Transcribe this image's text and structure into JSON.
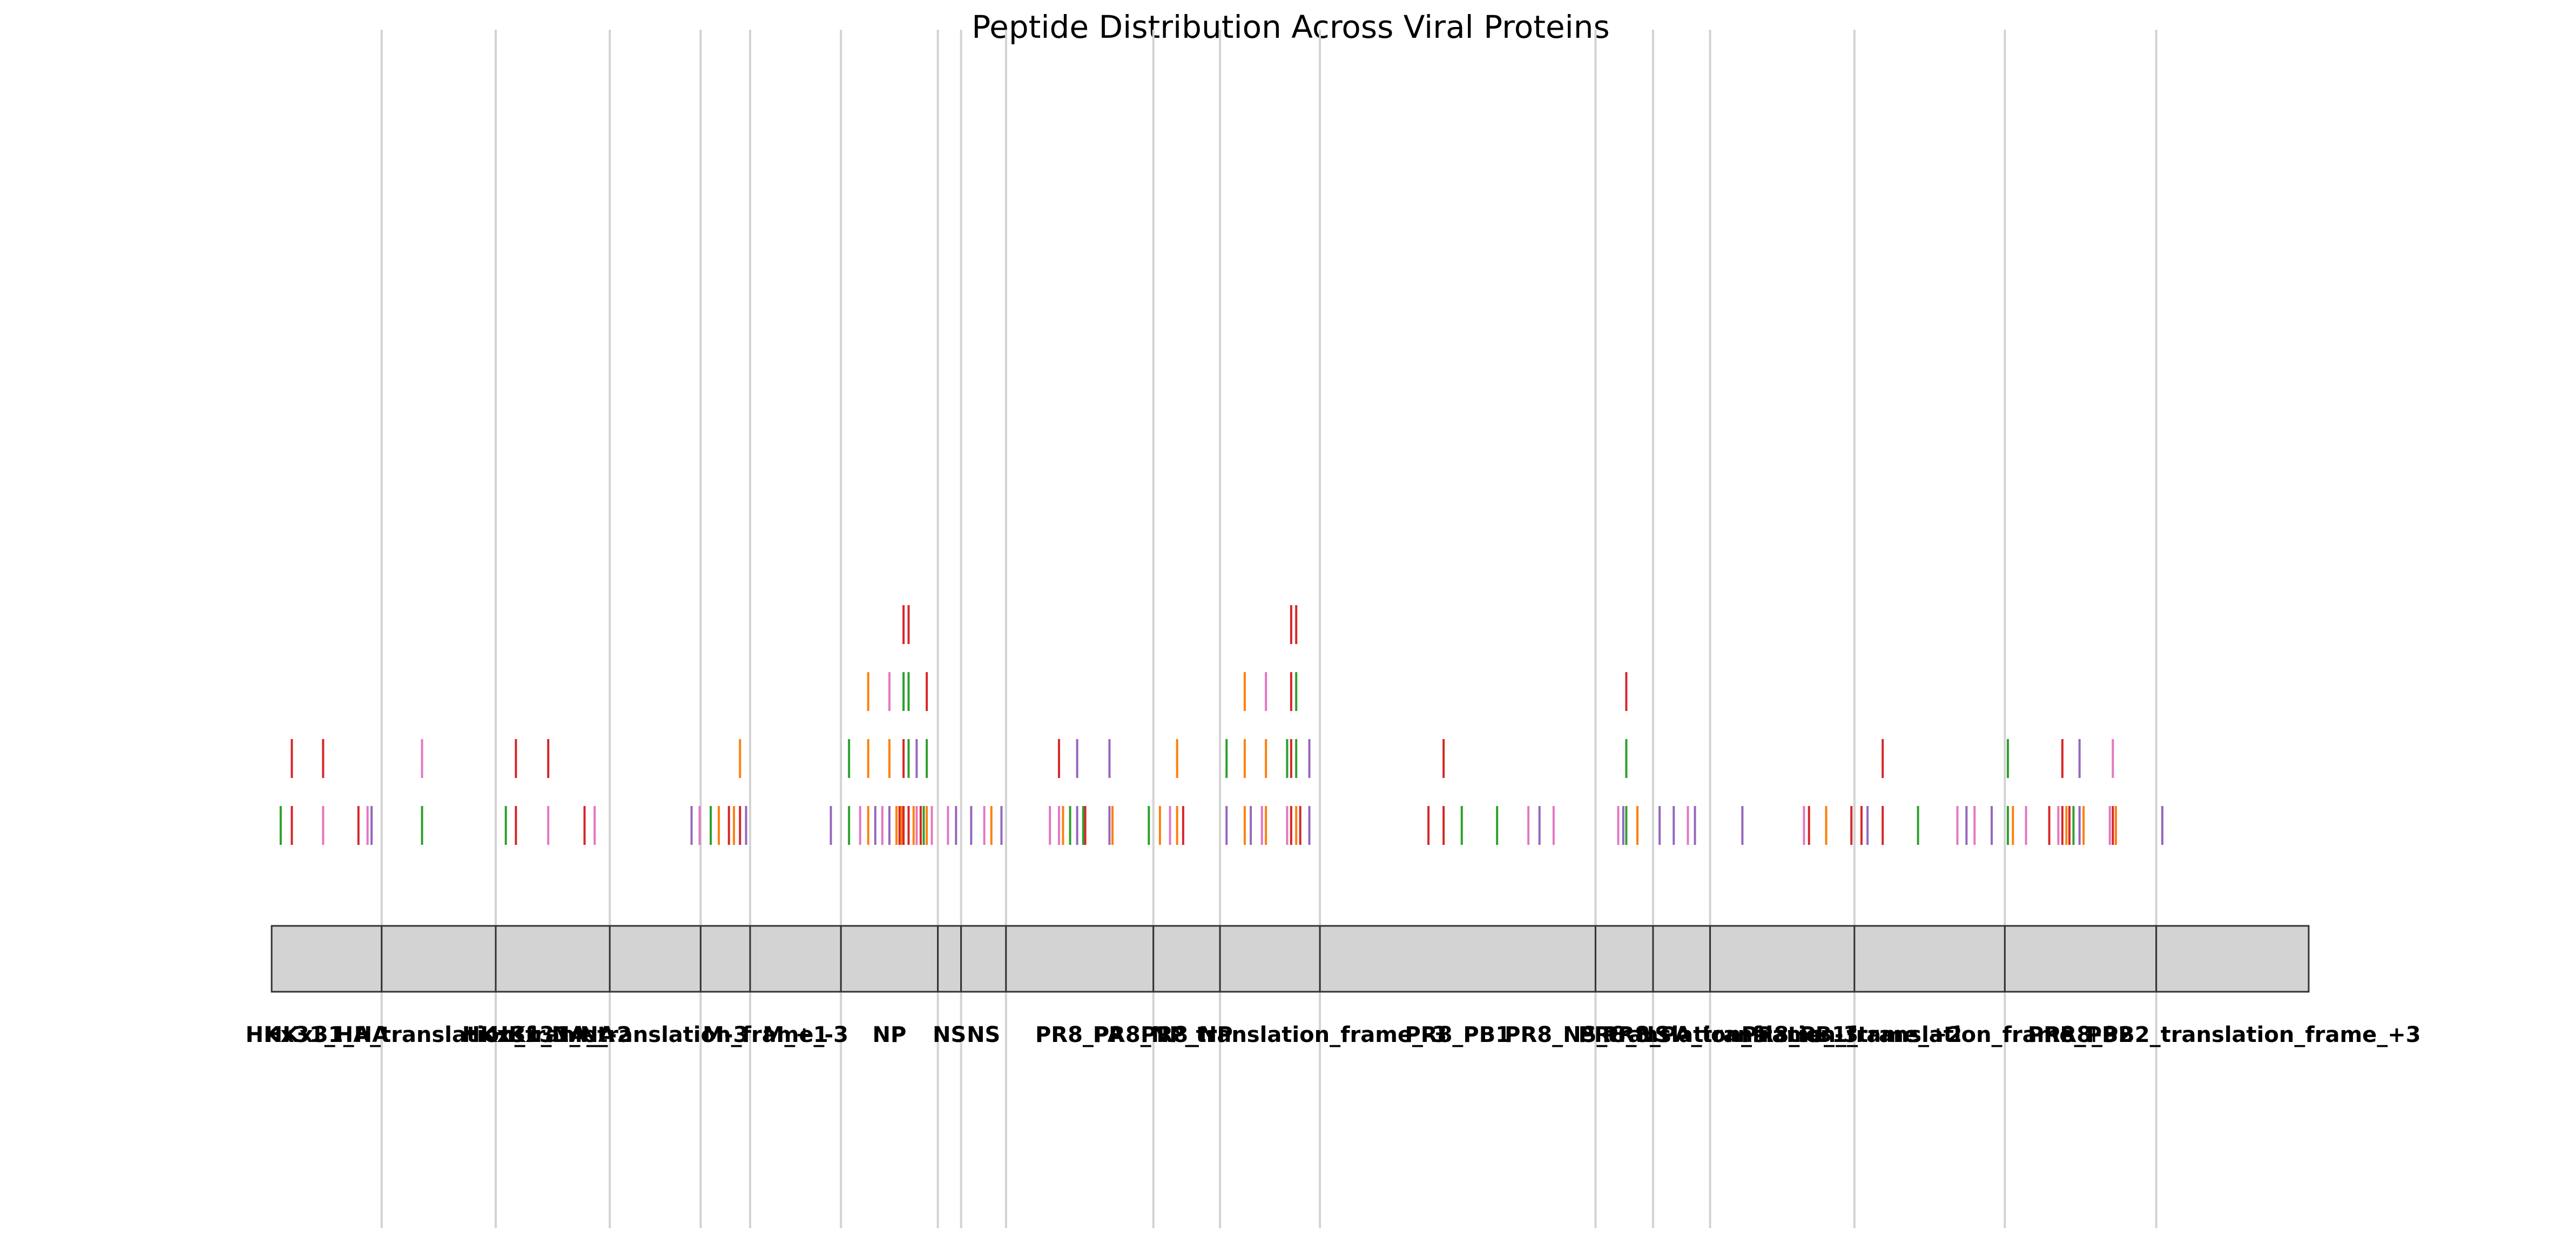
{
  "chart_data": {
    "type": "track",
    "title": "Peptide Distribution Across Viral Proteins",
    "xlabel": "",
    "ylabel": "",
    "axes_visible": false,
    "grid": false,
    "colors": {
      "box_fill": "#d3d3d3",
      "box_edge": "#333333",
      "divider": "#d3d3d3",
      "palette": [
        "#2ca02c",
        "#d62728",
        "#e377c2",
        "#9467bd",
        "#ff7f0e"
      ]
    },
    "proteins": [
      {
        "name": "HKx31_HA",
        "start": 0,
        "end": 218
      },
      {
        "name": "HKx31_HA_translation_frame_-2",
        "start": 218,
        "end": 444
      },
      {
        "name": "HKx31_NA",
        "start": 444,
        "end": 670
      },
      {
        "name": "HKx31_NA_translation_frame_-3",
        "start": 670,
        "end": 850
      },
      {
        "name": "M-3",
        "start": 850,
        "end": 948
      },
      {
        "name": "M_+1",
        "start": 948,
        "end": 1128
      },
      {
        "name": "NP",
        "start": 1128,
        "end": 1320
      },
      {
        "name": "NS",
        "start": 1320,
        "end": 1366
      },
      {
        "name": "NS",
        "start": 1366,
        "end": 1455
      },
      {
        "name": "PR8_PA",
        "start": 1455,
        "end": 1747
      },
      {
        "name": "PR8_NP",
        "start": 1747,
        "end": 1879
      },
      {
        "name": "PR8_NP_translation_frame_-3",
        "start": 1879,
        "end": 2077
      },
      {
        "name": "PR8_PB1",
        "start": 2077,
        "end": 2623
      },
      {
        "name": "PR8_NS",
        "start": 2623,
        "end": 2737
      },
      {
        "name": "PR8_NS_translation_frame_-3",
        "start": 2737,
        "end": 2850
      },
      {
        "name": "PR8_PA_translation_frame_+2",
        "start": 2850,
        "end": 3136
      },
      {
        "name": "PR8_PB1_translation_frame_+3",
        "start": 3136,
        "end": 3434
      },
      {
        "name": "PR8_PB2",
        "start": 3434,
        "end": 3734
      },
      {
        "name": "PR8_PB2_translation_frame_+3",
        "start": 3734,
        "end": 4036
      }
    ],
    "peptides": [
      {
        "pos": 18,
        "row": 0,
        "color": 0
      },
      {
        "pos": 40,
        "row": 0,
        "color": 1
      },
      {
        "pos": 40,
        "row": 1,
        "color": 1
      },
      {
        "pos": 102,
        "row": 0,
        "color": 2
      },
      {
        "pos": 102,
        "row": 1,
        "color": 1
      },
      {
        "pos": 172,
        "row": 0,
        "color": 1
      },
      {
        "pos": 190,
        "row": 0,
        "color": 2
      },
      {
        "pos": 198,
        "row": 0,
        "color": 3
      },
      {
        "pos": 298,
        "row": 0,
        "color": 0
      },
      {
        "pos": 298,
        "row": 1,
        "color": 2
      },
      {
        "pos": 464,
        "row": 0,
        "color": 0
      },
      {
        "pos": 484,
        "row": 0,
        "color": 1
      },
      {
        "pos": 484,
        "row": 1,
        "color": 1
      },
      {
        "pos": 548,
        "row": 0,
        "color": 2
      },
      {
        "pos": 548,
        "row": 1,
        "color": 1
      },
      {
        "pos": 620,
        "row": 0,
        "color": 1
      },
      {
        "pos": 640,
        "row": 0,
        "color": 2
      },
      {
        "pos": 832,
        "row": 0,
        "color": 3
      },
      {
        "pos": 848,
        "row": 0,
        "color": 2
      },
      {
        "pos": 870,
        "row": 0,
        "color": 0
      },
      {
        "pos": 886,
        "row": 0,
        "color": 4
      },
      {
        "pos": 906,
        "row": 0,
        "color": 1
      },
      {
        "pos": 916,
        "row": 0,
        "color": 4
      },
      {
        "pos": 928,
        "row": 0,
        "color": 1
      },
      {
        "pos": 928,
        "row": 1,
        "color": 4
      },
      {
        "pos": 940,
        "row": 0,
        "color": 3
      },
      {
        "pos": 1108,
        "row": 0,
        "color": 3
      },
      {
        "pos": 1144,
        "row": 0,
        "color": 0
      },
      {
        "pos": 1144,
        "row": 1,
        "color": 0
      },
      {
        "pos": 1166,
        "row": 0,
        "color": 2
      },
      {
        "pos": 1182,
        "row": 0,
        "color": 4
      },
      {
        "pos": 1182,
        "row": 1,
        "color": 4
      },
      {
        "pos": 1182,
        "row": 2,
        "color": 4
      },
      {
        "pos": 1196,
        "row": 0,
        "color": 3
      },
      {
        "pos": 1210,
        "row": 0,
        "color": 2
      },
      {
        "pos": 1224,
        "row": 0,
        "color": 3
      },
      {
        "pos": 1224,
        "row": 1,
        "color": 4
      },
      {
        "pos": 1224,
        "row": 2,
        "color": 2
      },
      {
        "pos": 1238,
        "row": 0,
        "color": 4
      },
      {
        "pos": 1244,
        "row": 0,
        "color": 1
      },
      {
        "pos": 1248,
        "row": 0,
        "color": 4
      },
      {
        "pos": 1252,
        "row": 0,
        "color": 1
      },
      {
        "pos": 1252,
        "row": 1,
        "color": 1
      },
      {
        "pos": 1252,
        "row": 2,
        "color": 0
      },
      {
        "pos": 1252,
        "row": 3,
        "color": 1
      },
      {
        "pos": 1262,
        "row": 0,
        "color": 1
      },
      {
        "pos": 1262,
        "row": 1,
        "color": 0
      },
      {
        "pos": 1262,
        "row": 2,
        "color": 0
      },
      {
        "pos": 1262,
        "row": 3,
        "color": 1
      },
      {
        "pos": 1272,
        "row": 0,
        "color": 4
      },
      {
        "pos": 1278,
        "row": 0,
        "color": 2
      },
      {
        "pos": 1278,
        "row": 1,
        "color": 3
      },
      {
        "pos": 1286,
        "row": 0,
        "color": 1
      },
      {
        "pos": 1292,
        "row": 0,
        "color": 0
      },
      {
        "pos": 1298,
        "row": 0,
        "color": 4
      },
      {
        "pos": 1298,
        "row": 1,
        "color": 0
      },
      {
        "pos": 1298,
        "row": 2,
        "color": 1
      },
      {
        "pos": 1308,
        "row": 0,
        "color": 2
      },
      {
        "pos": 1340,
        "row": 0,
        "color": 2
      },
      {
        "pos": 1356,
        "row": 0,
        "color": 3
      },
      {
        "pos": 1386,
        "row": 0,
        "color": 3
      },
      {
        "pos": 1412,
        "row": 0,
        "color": 2
      },
      {
        "pos": 1426,
        "row": 0,
        "color": 4
      },
      {
        "pos": 1446,
        "row": 0,
        "color": 3
      },
      {
        "pos": 1542,
        "row": 0,
        "color": 2
      },
      {
        "pos": 1560,
        "row": 0,
        "color": 2
      },
      {
        "pos": 1560,
        "row": 1,
        "color": 1
      },
      {
        "pos": 1568,
        "row": 0,
        "color": 4
      },
      {
        "pos": 1582,
        "row": 0,
        "color": 0
      },
      {
        "pos": 1596,
        "row": 0,
        "color": 3
      },
      {
        "pos": 1596,
        "row": 1,
        "color": 3
      },
      {
        "pos": 1608,
        "row": 0,
        "color": 0
      },
      {
        "pos": 1612,
        "row": 0,
        "color": 1
      },
      {
        "pos": 1660,
        "row": 0,
        "color": 3
      },
      {
        "pos": 1660,
        "row": 1,
        "color": 3
      },
      {
        "pos": 1666,
        "row": 0,
        "color": 4
      },
      {
        "pos": 1738,
        "row": 0,
        "color": 0
      },
      {
        "pos": 1760,
        "row": 0,
        "color": 4
      },
      {
        "pos": 1780,
        "row": 0,
        "color": 2
      },
      {
        "pos": 1794,
        "row": 0,
        "color": 4
      },
      {
        "pos": 1794,
        "row": 1,
        "color": 4
      },
      {
        "pos": 1806,
        "row": 0,
        "color": 1
      },
      {
        "pos": 1892,
        "row": 0,
        "color": 3
      },
      {
        "pos": 1892,
        "row": 1,
        "color": 0
      },
      {
        "pos": 1928,
        "row": 0,
        "color": 4
      },
      {
        "pos": 1928,
        "row": 1,
        "color": 4
      },
      {
        "pos": 1928,
        "row": 2,
        "color": 4
      },
      {
        "pos": 1940,
        "row": 0,
        "color": 3
      },
      {
        "pos": 1962,
        "row": 0,
        "color": 2
      },
      {
        "pos": 1970,
        "row": 0,
        "color": 4
      },
      {
        "pos": 1970,
        "row": 1,
        "color": 4
      },
      {
        "pos": 1970,
        "row": 2,
        "color": 2
      },
      {
        "pos": 2012,
        "row": 0,
        "color": 2
      },
      {
        "pos": 2012,
        "row": 1,
        "color": 0
      },
      {
        "pos": 2020,
        "row": 0,
        "color": 1
      },
      {
        "pos": 2020,
        "row": 1,
        "color": 1
      },
      {
        "pos": 2020,
        "row": 2,
        "color": 1
      },
      {
        "pos": 2020,
        "row": 3,
        "color": 1
      },
      {
        "pos": 2030,
        "row": 0,
        "color": 4
      },
      {
        "pos": 2030,
        "row": 1,
        "color": 0
      },
      {
        "pos": 2030,
        "row": 2,
        "color": 0
      },
      {
        "pos": 2030,
        "row": 3,
        "color": 1
      },
      {
        "pos": 2038,
        "row": 0,
        "color": 1
      },
      {
        "pos": 2056,
        "row": 0,
        "color": 3
      },
      {
        "pos": 2056,
        "row": 1,
        "color": 3
      },
      {
        "pos": 2292,
        "row": 0,
        "color": 1
      },
      {
        "pos": 2322,
        "row": 0,
        "color": 1
      },
      {
        "pos": 2322,
        "row": 1,
        "color": 1
      },
      {
        "pos": 2358,
        "row": 0,
        "color": 0
      },
      {
        "pos": 2428,
        "row": 0,
        "color": 0
      },
      {
        "pos": 2490,
        "row": 0,
        "color": 2
      },
      {
        "pos": 2512,
        "row": 0,
        "color": 3
      },
      {
        "pos": 2540,
        "row": 0,
        "color": 2
      },
      {
        "pos": 2668,
        "row": 0,
        "color": 2
      },
      {
        "pos": 2678,
        "row": 0,
        "color": 3
      },
      {
        "pos": 2684,
        "row": 0,
        "color": 0
      },
      {
        "pos": 2684,
        "row": 1,
        "color": 0
      },
      {
        "pos": 2684,
        "row": 2,
        "color": 1
      },
      {
        "pos": 2706,
        "row": 0,
        "color": 4
      },
      {
        "pos": 2750,
        "row": 0,
        "color": 3
      },
      {
        "pos": 2778,
        "row": 0,
        "color": 3
      },
      {
        "pos": 2806,
        "row": 0,
        "color": 2
      },
      {
        "pos": 2820,
        "row": 0,
        "color": 3
      },
      {
        "pos": 2914,
        "row": 0,
        "color": 3
      },
      {
        "pos": 3036,
        "row": 0,
        "color": 2
      },
      {
        "pos": 3046,
        "row": 0,
        "color": 1
      },
      {
        "pos": 3080,
        "row": 0,
        "color": 4
      },
      {
        "pos": 3130,
        "row": 0,
        "color": 1
      },
      {
        "pos": 3150,
        "row": 0,
        "color": 1
      },
      {
        "pos": 3162,
        "row": 0,
        "color": 3
      },
      {
        "pos": 3192,
        "row": 0,
        "color": 1
      },
      {
        "pos": 3192,
        "row": 1,
        "color": 1
      },
      {
        "pos": 3262,
        "row": 0,
        "color": 0
      },
      {
        "pos": 3340,
        "row": 0,
        "color": 2
      },
      {
        "pos": 3358,
        "row": 0,
        "color": 3
      },
      {
        "pos": 3374,
        "row": 0,
        "color": 2
      },
      {
        "pos": 3408,
        "row": 0,
        "color": 3
      },
      {
        "pos": 3440,
        "row": 0,
        "color": 0
      },
      {
        "pos": 3440,
        "row": 1,
        "color": 0
      },
      {
        "pos": 3450,
        "row": 0,
        "color": 4
      },
      {
        "pos": 3476,
        "row": 0,
        "color": 2
      },
      {
        "pos": 3522,
        "row": 0,
        "color": 1
      },
      {
        "pos": 3540,
        "row": 0,
        "color": 2
      },
      {
        "pos": 3548,
        "row": 0,
        "color": 1
      },
      {
        "pos": 3548,
        "row": 1,
        "color": 1
      },
      {
        "pos": 3556,
        "row": 0,
        "color": 4
      },
      {
        "pos": 3562,
        "row": 0,
        "color": 1
      },
      {
        "pos": 3570,
        "row": 0,
        "color": 0
      },
      {
        "pos": 3582,
        "row": 0,
        "color": 3
      },
      {
        "pos": 3582,
        "row": 1,
        "color": 3
      },
      {
        "pos": 3590,
        "row": 0,
        "color": 4
      },
      {
        "pos": 3642,
        "row": 0,
        "color": 2
      },
      {
        "pos": 3648,
        "row": 0,
        "color": 1
      },
      {
        "pos": 3648,
        "row": 1,
        "color": 2
      },
      {
        "pos": 3654,
        "row": 0,
        "color": 4
      },
      {
        "pos": 3746,
        "row": 0,
        "color": 3
      }
    ]
  }
}
